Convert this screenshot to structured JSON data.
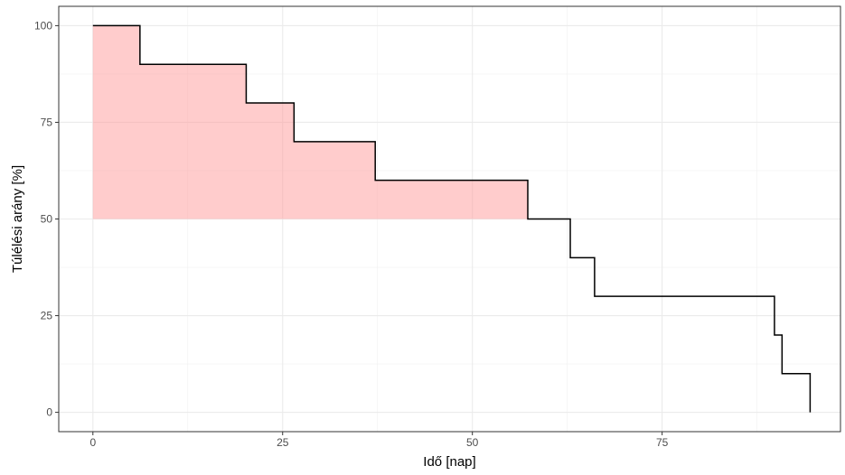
{
  "chart_data": {
    "type": "line",
    "subtype": "step",
    "title": "",
    "xlabel": "Idő [nap]",
    "ylabel": "Túlélési arány [%]",
    "xlim": [
      -4.5,
      98.5
    ],
    "ylim": [
      -5,
      105
    ],
    "xticks": [
      0,
      25,
      50,
      75
    ],
    "xtick_labels": [
      "0",
      "25",
      "50",
      "75"
    ],
    "yticks": [
      0,
      25,
      50,
      75,
      100
    ],
    "ytick_labels": [
      "0",
      "25",
      "50",
      "75",
      "100"
    ],
    "grid": true,
    "legend": "none",
    "series": [
      {
        "x": [
          0,
          6.2,
          20.2,
          26.5,
          37.2,
          57.3,
          62.9,
          66.1,
          89.8,
          90.8,
          94.5
        ],
        "y": [
          100,
          90,
          80,
          70,
          60,
          50,
          40,
          30,
          20,
          10,
          0
        ],
        "color": "#000000"
      }
    ],
    "shaded_region": {
      "x_end": 57.3,
      "y_floor": 50,
      "color": "#ff9999",
      "opacity": 0.5
    }
  }
}
